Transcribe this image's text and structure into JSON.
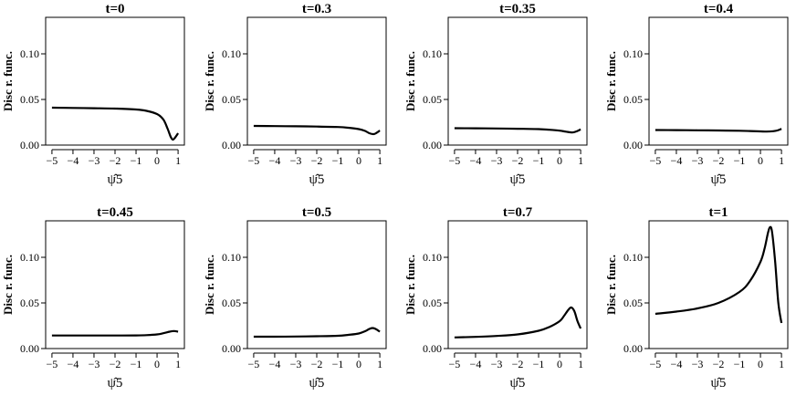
{
  "chart_data": [
    {
      "type": "line",
      "title": "t=0",
      "ylabel": "Disc r. func.",
      "xlabel": "ψ̂5",
      "x": [
        -5,
        -4,
        -3,
        -2,
        -1,
        -0.5,
        0,
        0.3,
        0.5,
        0.65,
        0.75,
        0.85,
        1.0
      ],
      "y": [
        0.041,
        0.0407,
        0.0404,
        0.04,
        0.039,
        0.0375,
        0.034,
        0.028,
        0.018,
        0.009,
        0.006,
        0.008,
        0.013
      ],
      "xlim": [
        -5.3,
        1.3
      ],
      "ylim": [
        0,
        0.14
      ],
      "xticks": [
        "−5",
        "−4",
        "−3",
        "−2",
        "−1",
        "0",
        "1"
      ],
      "yticks": [
        "0.00",
        "0.05",
        "0.10"
      ]
    },
    {
      "type": "line",
      "title": "t=0.3",
      "ylabel": "Disc r. func.",
      "xlabel": "ψ̂5",
      "x": [
        -5,
        -4,
        -3,
        -2,
        -1,
        -0.5,
        0,
        0.3,
        0.5,
        0.7,
        0.85,
        1.0
      ],
      "y": [
        0.021,
        0.0208,
        0.0206,
        0.0203,
        0.0198,
        0.019,
        0.0175,
        0.0155,
        0.013,
        0.012,
        0.0135,
        0.016
      ],
      "xlim": [
        -5.3,
        1.3
      ],
      "ylim": [
        0,
        0.14
      ],
      "xticks": [
        "−5",
        "−4",
        "−3",
        "−2",
        "−1",
        "0",
        "1"
      ],
      "yticks": [
        "0.00",
        "0.05",
        "0.10"
      ]
    },
    {
      "type": "line",
      "title": "t=0.35",
      "ylabel": "Disc r. func.",
      "xlabel": "ψ̂5",
      "x": [
        -5,
        -4,
        -3,
        -2,
        -1,
        -0.5,
        0,
        0.3,
        0.6,
        0.8,
        1.0
      ],
      "y": [
        0.0185,
        0.0184,
        0.0182,
        0.0179,
        0.0175,
        0.0168,
        0.0158,
        0.0147,
        0.0138,
        0.015,
        0.0172
      ],
      "xlim": [
        -5.3,
        1.3
      ],
      "ylim": [
        0,
        0.14
      ],
      "xticks": [
        "−5",
        "−4",
        "−3",
        "−2",
        "−1",
        "0",
        "1"
      ],
      "yticks": [
        "0.00",
        "0.05",
        "0.10"
      ]
    },
    {
      "type": "line",
      "title": "t=0.4",
      "ylabel": "Disc r. func.",
      "xlabel": "ψ̂5",
      "x": [
        -5,
        -4,
        -3,
        -2,
        -1,
        -0.5,
        0,
        0.3,
        0.6,
        0.8,
        1.0
      ],
      "y": [
        0.0165,
        0.0164,
        0.0162,
        0.016,
        0.0157,
        0.0154,
        0.015,
        0.0148,
        0.0152,
        0.016,
        0.0178
      ],
      "xlim": [
        -5.3,
        1.3
      ],
      "ylim": [
        0,
        0.14
      ],
      "xticks": [
        "−5",
        "−4",
        "−3",
        "−2",
        "−1",
        "0",
        "1"
      ],
      "yticks": [
        "0.00",
        "0.05",
        "0.10"
      ]
    },
    {
      "type": "line",
      "title": "t=0.45",
      "ylabel": "Disc r. func.",
      "xlabel": "ψ̂5",
      "x": [
        -5,
        -4,
        -3,
        -2,
        -1,
        -0.5,
        0,
        0.3,
        0.6,
        0.8,
        1.0
      ],
      "y": [
        0.0143,
        0.0143,
        0.0143,
        0.0143,
        0.0144,
        0.0147,
        0.0155,
        0.0168,
        0.0185,
        0.0192,
        0.0185
      ],
      "xlim": [
        -5.3,
        1.3
      ],
      "ylim": [
        0,
        0.14
      ],
      "xticks": [
        "−5",
        "−4",
        "−3",
        "−2",
        "−1",
        "0",
        "1"
      ],
      "yticks": [
        "0.00",
        "0.05",
        "0.10"
      ]
    },
    {
      "type": "line",
      "title": "t=0.5",
      "ylabel": "Disc r. func.",
      "xlabel": "ψ̂5",
      "x": [
        -5,
        -4,
        -3,
        -2,
        -1,
        -0.5,
        0,
        0.3,
        0.5,
        0.65,
        0.8,
        1.0
      ],
      "y": [
        0.013,
        0.013,
        0.0132,
        0.0135,
        0.014,
        0.015,
        0.0165,
        0.019,
        0.0215,
        0.0225,
        0.0215,
        0.0185
      ],
      "xlim": [
        -5.3,
        1.3
      ],
      "ylim": [
        0,
        0.14
      ],
      "xticks": [
        "−5",
        "−4",
        "−3",
        "−2",
        "−1",
        "0",
        "1"
      ],
      "yticks": [
        "0.00",
        "0.05",
        "0.10"
      ]
    },
    {
      "type": "line",
      "title": "t=0.7",
      "ylabel": "Disc r. func.",
      "xlabel": "ψ̂5",
      "x": [
        -5,
        -4,
        -3,
        -2,
        -1,
        -0.5,
        0,
        0.2,
        0.4,
        0.55,
        0.7,
        0.85,
        1.0
      ],
      "y": [
        0.0122,
        0.0128,
        0.0138,
        0.0155,
        0.0195,
        0.0235,
        0.03,
        0.0355,
        0.042,
        0.045,
        0.041,
        0.03,
        0.022
      ],
      "xlim": [
        -5.3,
        1.3
      ],
      "ylim": [
        0,
        0.14
      ],
      "xticks": [
        "−5",
        "−4",
        "−3",
        "−2",
        "−1",
        "0",
        "1"
      ],
      "yticks": [
        "0.00",
        "0.05",
        "0.10"
      ]
    },
    {
      "type": "line",
      "title": "t=1",
      "ylabel": "Disc r. func.",
      "xlabel": "ψ̂5",
      "x": [
        -5,
        -4,
        -3,
        -2,
        -1,
        -0.5,
        0,
        0.2,
        0.35,
        0.45,
        0.55,
        0.7,
        0.85,
        1.0
      ],
      "y": [
        0.038,
        0.0405,
        0.044,
        0.05,
        0.062,
        0.074,
        0.095,
        0.11,
        0.126,
        0.133,
        0.128,
        0.095,
        0.05,
        0.028
      ],
      "xlim": [
        -5.3,
        1.3
      ],
      "ylim": [
        0,
        0.14
      ],
      "xticks": [
        "−5",
        "−4",
        "−3",
        "−2",
        "−1",
        "0",
        "1"
      ],
      "yticks": [
        "0.00",
        "0.05",
        "0.10"
      ]
    }
  ]
}
